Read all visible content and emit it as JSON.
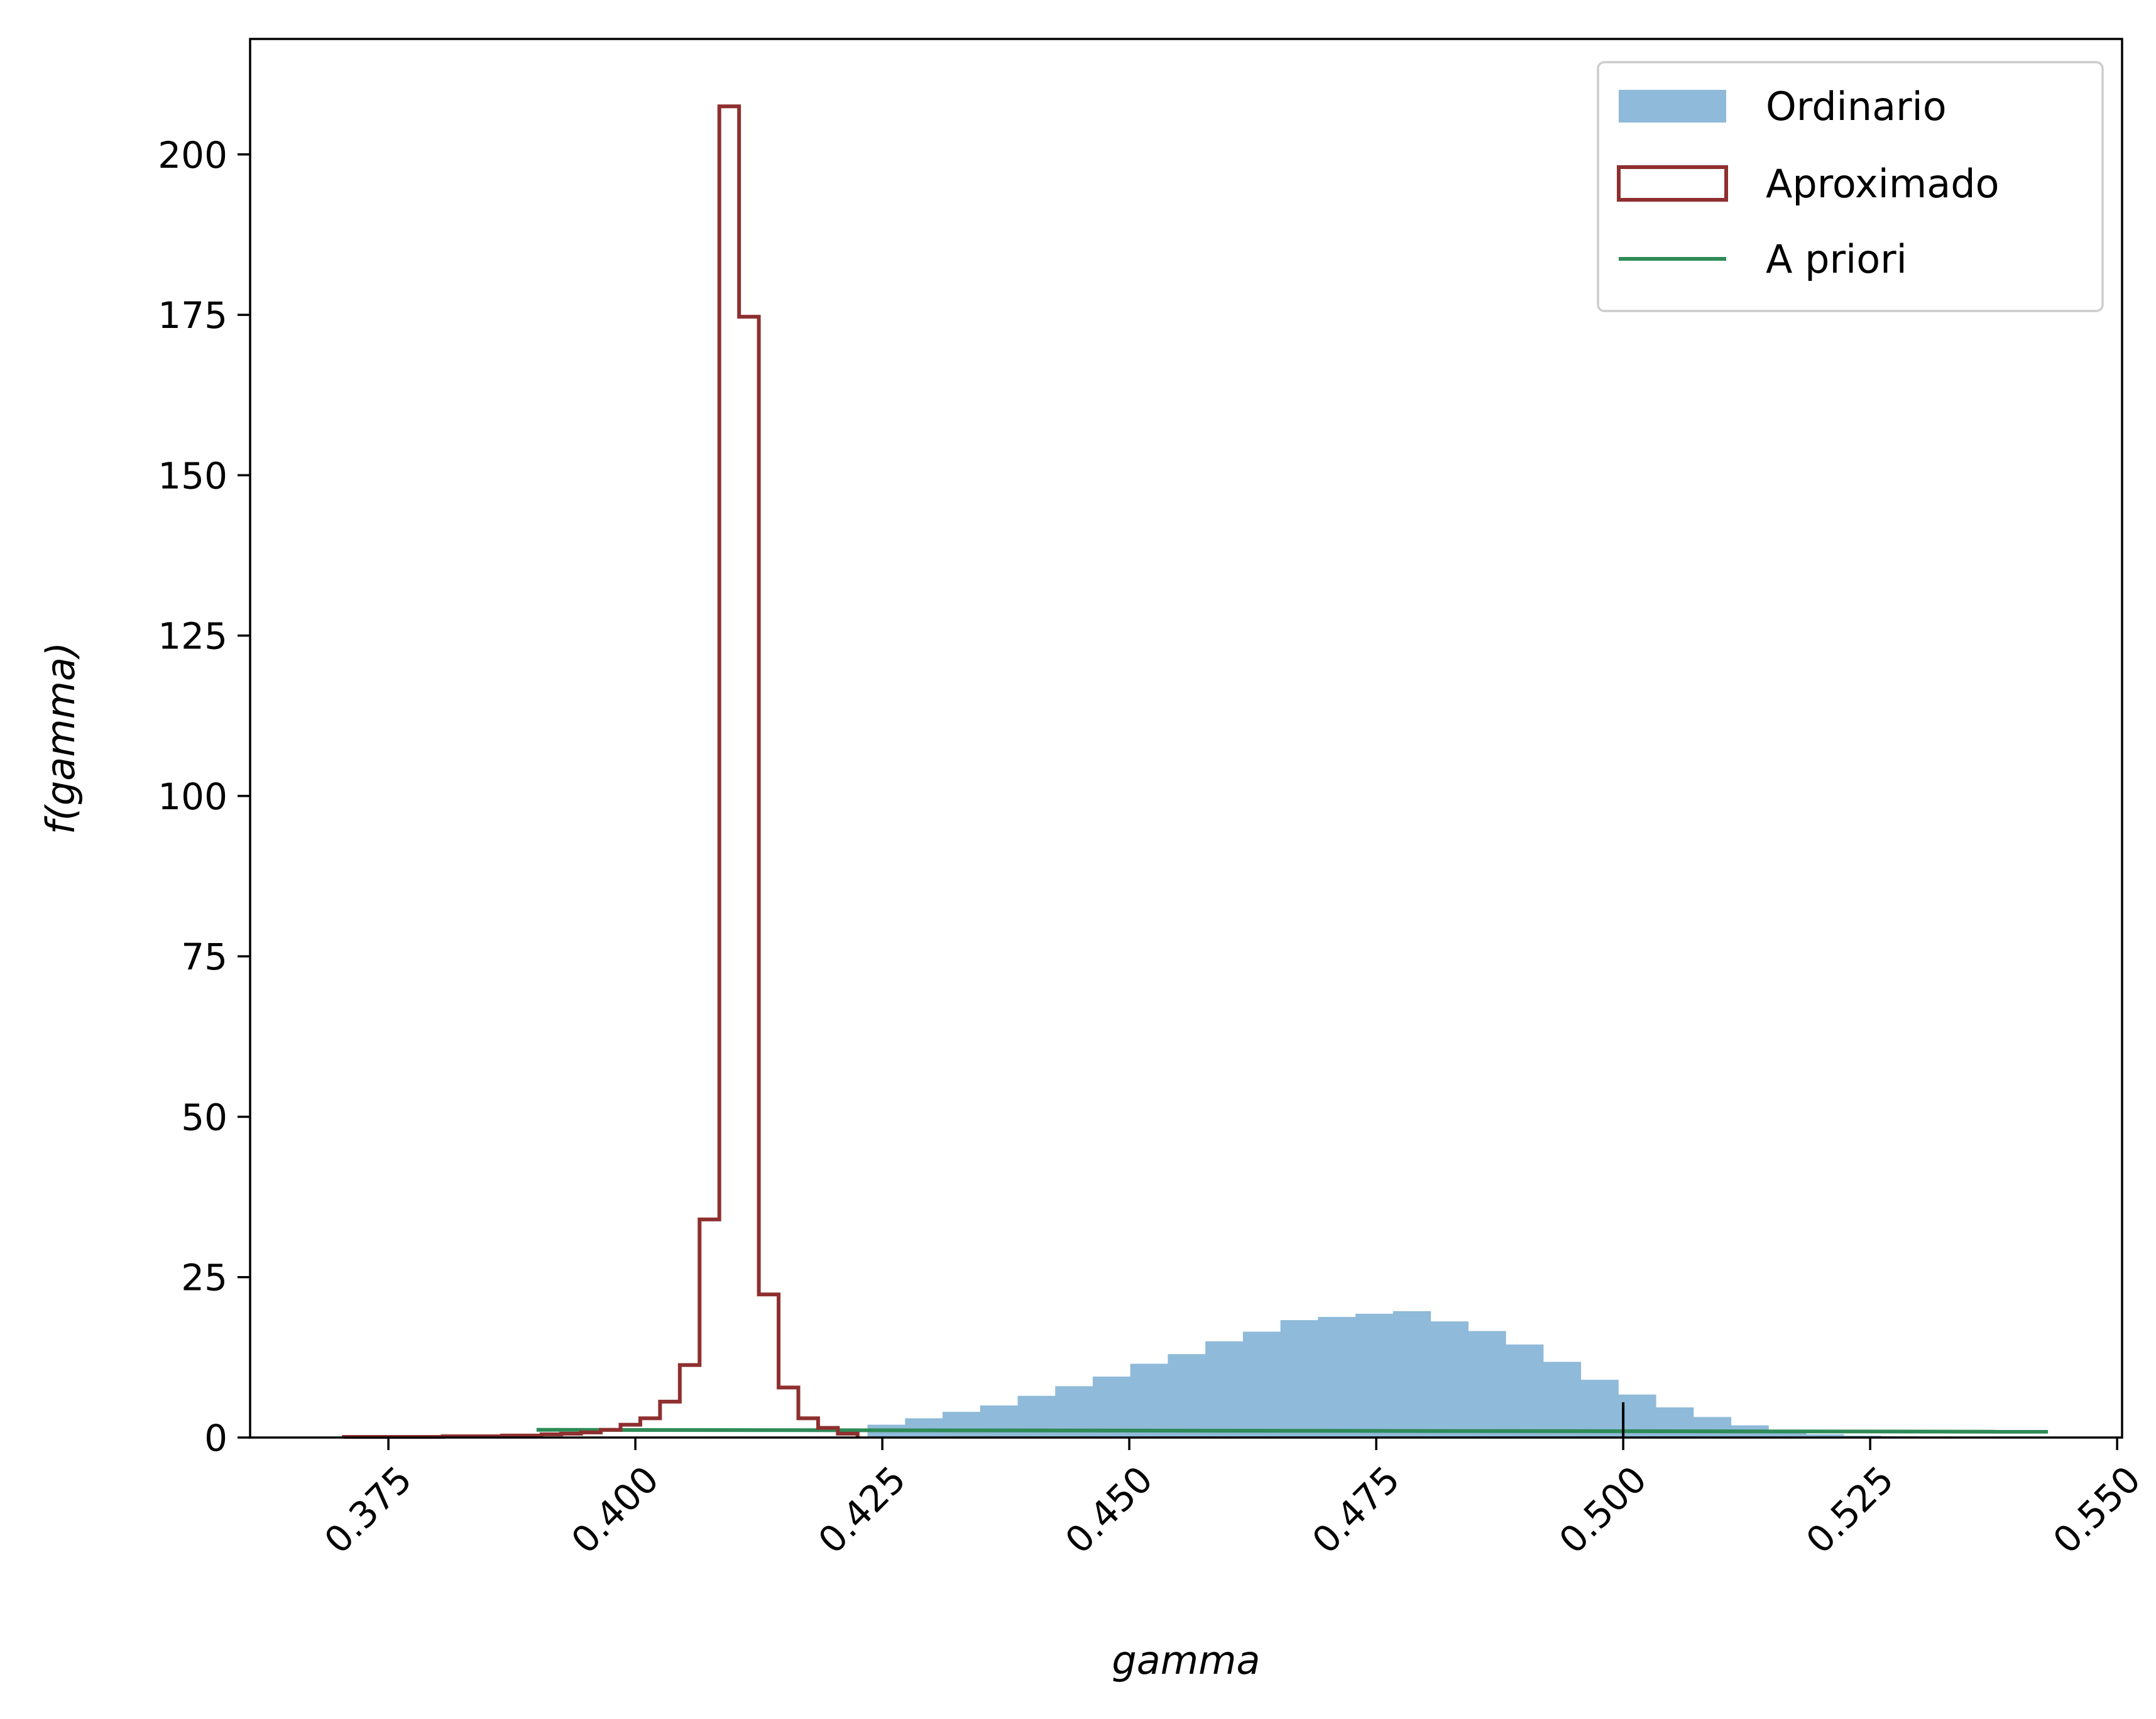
{
  "chart_data": {
    "type": "bar",
    "xlabel": "gamma",
    "ylabel": "f(gamma)",
    "xlim": [
      0.361,
      0.5505
    ],
    "ylim": [
      0,
      218
    ],
    "xticks": [
      0.375,
      0.4,
      0.425,
      0.45,
      0.475,
      0.5,
      0.525,
      0.55
    ],
    "xtick_labels": [
      "0.375",
      "0.400",
      "0.425",
      "0.450",
      "0.475",
      "0.500",
      "0.525",
      "0.550"
    ],
    "yticks": [
      0,
      25,
      50,
      75,
      100,
      125,
      150,
      175,
      200
    ],
    "ytick_labels": [
      "0",
      "25",
      "50",
      "75",
      "100",
      "125",
      "150",
      "175",
      "200"
    ],
    "grid": false,
    "legend_position": "top-right",
    "series": [
      {
        "name": "Ordinario",
        "kind": "filled-histogram",
        "color": "#8fbad9",
        "bin_start": 0.4235,
        "bin_width": 0.0038,
        "values": [
          2.0,
          3.0,
          4.0,
          5.0,
          6.5,
          8.0,
          9.5,
          11.5,
          13.0,
          15.0,
          16.5,
          18.3,
          18.8,
          19.3,
          19.7,
          18.1,
          16.6,
          14.5,
          11.8,
          9.0,
          6.7,
          4.7,
          3.2,
          1.9,
          1.0,
          0.5,
          0.3,
          0.2,
          0.1,
          0.1,
          0.05,
          0.02,
          0.01
        ]
      },
      {
        "name": "Aproximado",
        "kind": "step-histogram",
        "color": "#8f2f2f",
        "bin_start": 0.3705,
        "bin_width": 0.002,
        "values": [
          0.1,
          0.1,
          0.1,
          0.1,
          0.1,
          0.2,
          0.2,
          0.2,
          0.3,
          0.3,
          0.5,
          0.6,
          0.8,
          1.2,
          2.0,
          3.0,
          5.6,
          11.3,
          34.0,
          207.5,
          174.7,
          22.3,
          7.8,
          3.0,
          1.5,
          0.6
        ]
      },
      {
        "name": "A priori",
        "kind": "line",
        "color": "#2e8b57",
        "x": [
          0.39,
          0.543
        ],
        "y": [
          1.2,
          0.9
        ]
      }
    ],
    "annotations": [
      {
        "kind": "vertical-marker",
        "x": 0.5,
        "y_range": [
          0,
          5.5
        ],
        "color": "#000000"
      }
    ]
  }
}
